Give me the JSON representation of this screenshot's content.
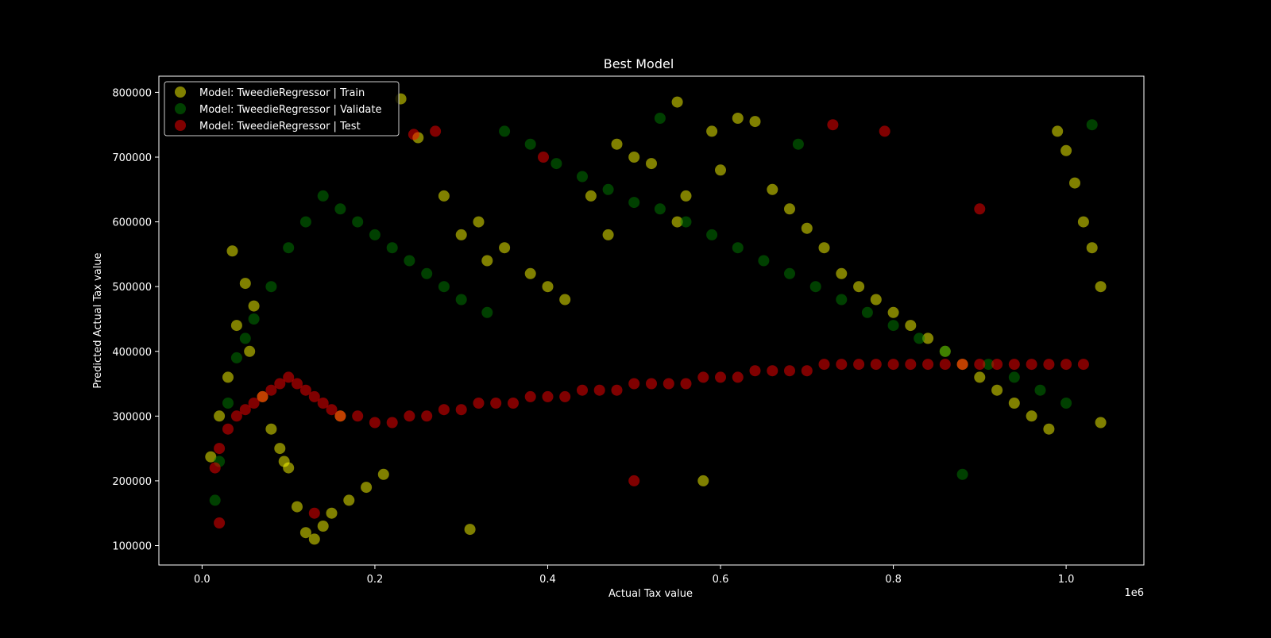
{
  "chart_data": {
    "type": "scatter",
    "title": "Best Model",
    "xlabel": "Actual Tax value",
    "ylabel": "Predicted Actual Tax value",
    "x_offset_label": "1e6",
    "xlim": [
      -0.05,
      1.09
    ],
    "ylim": [
      70000,
      825000
    ],
    "x_ticks": [
      0.0,
      0.2,
      0.4,
      0.6,
      0.8,
      1.0
    ],
    "x_tick_labels": [
      "0.0",
      "0.2",
      "0.4",
      "0.6",
      "0.8",
      "1.0"
    ],
    "y_ticks": [
      100000,
      200000,
      300000,
      400000,
      500000,
      600000,
      700000,
      800000
    ],
    "y_tick_labels": [
      "100000",
      "200000",
      "300000",
      "400000",
      "500000",
      "600000",
      "700000",
      "800000"
    ],
    "grid": false,
    "legend_position": "top-left",
    "background": "#000000",
    "foreground": "#ffffff",
    "marker_opacity": 0.5,
    "series": [
      {
        "name": "Model: TweedieRegressor | Train",
        "color": "#ffff00",
        "x": [
          0.01,
          0.02,
          0.03,
          0.035,
          0.04,
          0.05,
          0.055,
          0.06,
          0.07,
          0.08,
          0.09,
          0.1,
          0.11,
          0.12,
          0.13,
          0.14,
          0.15,
          0.17,
          0.19,
          0.21,
          0.23,
          0.25,
          0.28,
          0.3,
          0.31,
          0.32,
          0.35,
          0.38,
          0.4,
          0.42,
          0.45,
          0.48,
          0.5,
          0.52,
          0.55,
          0.56,
          0.58,
          0.59,
          0.6,
          0.62,
          0.64,
          0.66,
          0.68,
          0.7,
          0.72,
          0.74,
          0.76,
          0.78,
          0.8,
          0.82,
          0.84,
          0.86,
          0.88,
          0.9,
          0.92,
          0.94,
          0.96,
          0.98,
          0.99,
          1.0,
          1.01,
          1.02,
          1.03,
          1.04,
          1.04,
          0.55,
          0.47,
          0.33,
          0.16,
          0.095
        ],
        "y": [
          237000,
          300000,
          360000,
          555000,
          440000,
          505000,
          400000,
          470000,
          330000,
          280000,
          250000,
          220000,
          160000,
          120000,
          110000,
          130000,
          150000,
          170000,
          190000,
          210000,
          790000,
          730000,
          640000,
          580000,
          125000,
          600000,
          560000,
          520000,
          500000,
          480000,
          640000,
          720000,
          700000,
          690000,
          785000,
          640000,
          200000,
          740000,
          680000,
          760000,
          755000,
          650000,
          620000,
          590000,
          560000,
          520000,
          500000,
          480000,
          460000,
          440000,
          420000,
          400000,
          380000,
          360000,
          340000,
          320000,
          300000,
          280000,
          740000,
          710000,
          660000,
          600000,
          560000,
          500000,
          290000,
          600000,
          580000,
          540000,
          300000,
          230000
        ]
      },
      {
        "name": "Model: TweedieRegressor | Validate",
        "color": "#008000",
        "x": [
          0.015,
          0.02,
          0.03,
          0.04,
          0.05,
          0.06,
          0.08,
          0.1,
          0.12,
          0.14,
          0.16,
          0.18,
          0.2,
          0.22,
          0.24,
          0.26,
          0.28,
          0.3,
          0.33,
          0.35,
          0.38,
          0.41,
          0.44,
          0.47,
          0.5,
          0.53,
          0.56,
          0.59,
          0.62,
          0.65,
          0.68,
          0.71,
          0.74,
          0.77,
          0.8,
          0.83,
          0.86,
          0.88,
          0.91,
          0.94,
          0.97,
          1.0,
          1.03,
          0.53,
          0.69
        ],
        "y": [
          170000,
          230000,
          320000,
          390000,
          420000,
          450000,
          500000,
          560000,
          600000,
          640000,
          620000,
          600000,
          580000,
          560000,
          540000,
          520000,
          500000,
          480000,
          460000,
          740000,
          720000,
          690000,
          670000,
          650000,
          630000,
          760000,
          600000,
          580000,
          560000,
          540000,
          520000,
          500000,
          480000,
          460000,
          440000,
          420000,
          400000,
          210000,
          380000,
          360000,
          340000,
          320000,
          750000,
          620000,
          720000
        ]
      },
      {
        "name": "Model: TweedieRegressor | Test",
        "color": "#ff0000",
        "x": [
          0.015,
          0.02,
          0.03,
          0.04,
          0.05,
          0.06,
          0.07,
          0.08,
          0.09,
          0.1,
          0.11,
          0.12,
          0.13,
          0.14,
          0.15,
          0.16,
          0.18,
          0.2,
          0.22,
          0.24,
          0.26,
          0.28,
          0.3,
          0.32,
          0.34,
          0.36,
          0.38,
          0.4,
          0.42,
          0.44,
          0.46,
          0.48,
          0.5,
          0.52,
          0.54,
          0.56,
          0.58,
          0.6,
          0.62,
          0.64,
          0.66,
          0.68,
          0.7,
          0.72,
          0.74,
          0.76,
          0.78,
          0.8,
          0.82,
          0.84,
          0.86,
          0.88,
          0.9,
          0.92,
          0.94,
          0.96,
          0.98,
          1.0,
          1.02,
          0.73,
          0.79,
          0.9,
          0.245,
          0.27,
          0.395,
          0.5,
          0.02,
          0.13
        ],
        "y": [
          220000,
          250000,
          280000,
          300000,
          310000,
          320000,
          330000,
          340000,
          350000,
          360000,
          350000,
          340000,
          330000,
          320000,
          310000,
          300000,
          300000,
          290000,
          290000,
          300000,
          300000,
          310000,
          310000,
          320000,
          320000,
          320000,
          330000,
          330000,
          330000,
          340000,
          340000,
          340000,
          350000,
          350000,
          350000,
          350000,
          360000,
          360000,
          360000,
          370000,
          370000,
          370000,
          370000,
          380000,
          380000,
          380000,
          380000,
          380000,
          380000,
          380000,
          380000,
          380000,
          380000,
          380000,
          380000,
          380000,
          380000,
          380000,
          380000,
          750000,
          740000,
          620000,
          735000,
          740000,
          700000,
          200000,
          135000,
          150000
        ]
      }
    ]
  }
}
